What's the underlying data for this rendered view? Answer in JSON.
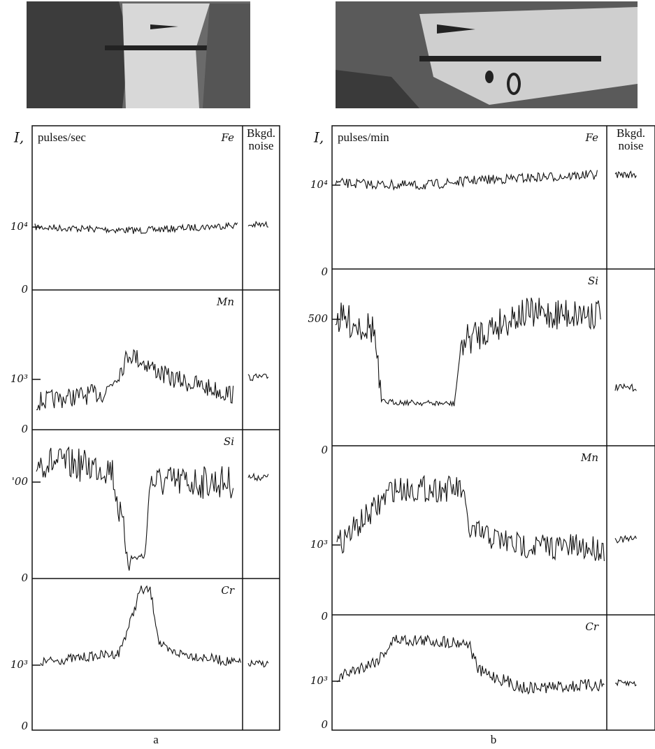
{
  "panels": [
    {
      "label": "a",
      "axis_symbol": "I,",
      "unit": "pulses/sec",
      "noise_label": [
        "Bkgd.",
        "noise"
      ],
      "tracks": [
        {
          "element": "Fe",
          "ticks": [
            "10⁴",
            "0"
          ]
        },
        {
          "element": "Mn",
          "ticks": [
            "10³",
            "0"
          ]
        },
        {
          "element": "Si",
          "ticks": [
            "'00",
            "0"
          ]
        },
        {
          "element": "Cr",
          "ticks": [
            "10³",
            "0"
          ]
        }
      ]
    },
    {
      "label": "b",
      "axis_symbol": "I,",
      "unit": "pulses/min",
      "noise_label": [
        "Bkgd.",
        "noise"
      ],
      "tracks": [
        {
          "element": "Fe",
          "ticks": [
            "10⁴",
            "0"
          ]
        },
        {
          "element": "Si",
          "ticks": [
            "500",
            "0"
          ]
        },
        {
          "element": "Mn",
          "ticks": [
            "10³",
            "0"
          ]
        },
        {
          "element": "Cr",
          "ticks": [
            "10³",
            "0"
          ]
        }
      ]
    }
  ]
}
